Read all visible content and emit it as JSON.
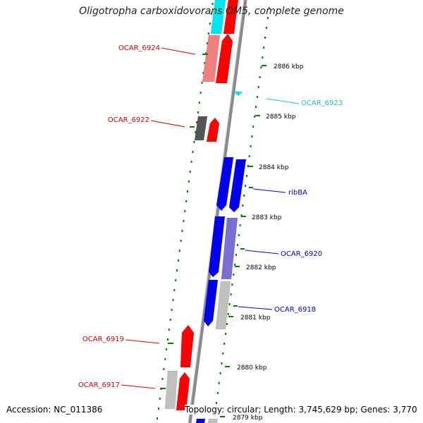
{
  "title": "Oligotropha carboxidovorans OM5, complete genome",
  "accession": "Accession: NC_011386",
  "summary": "Topology: circular; Length: 3,745,629 bp; Genes: 3,770",
  "colors": {
    "forward_gene": "#ff0000",
    "forward_gene_light": "#f08080",
    "reverse_gene": "#0000ee",
    "reverse_gene_alt": "#7a6fd0",
    "cyan_gene": "#00e5ee",
    "grey_gene": "#c0c0c0",
    "dark_grey_gene": "#555555",
    "backbone": "#888888",
    "tick": "#008000",
    "label_forward": "#dd0000",
    "label_reverse": "#0000cc",
    "label_cyan": "#2ab0e0"
  },
  "ticks": [
    {
      "label": "2886 kbp"
    },
    {
      "label": "2885 kbp"
    },
    {
      "label": "2884 kbp"
    },
    {
      "label": "2883 kbp"
    },
    {
      "label": "2882 kbp"
    },
    {
      "label": "2881 kbp"
    },
    {
      "label": "2880 kbp"
    },
    {
      "label": "2879 kbp"
    }
  ],
  "gene_labels": [
    {
      "name": "OCAR_6924",
      "strand": "forward"
    },
    {
      "name": "OCAR_6922",
      "strand": "forward"
    },
    {
      "name": "OCAR_6919",
      "strand": "forward"
    },
    {
      "name": "OCAR_6917",
      "strand": "forward"
    },
    {
      "name": "OCAR_6923",
      "strand": "cyan"
    },
    {
      "name": "ribBA",
      "strand": "reverse"
    },
    {
      "name": "OCAR_6920",
      "strand": "reverse"
    },
    {
      "name": "OCAR_6918",
      "strand": "reverse"
    }
  ]
}
